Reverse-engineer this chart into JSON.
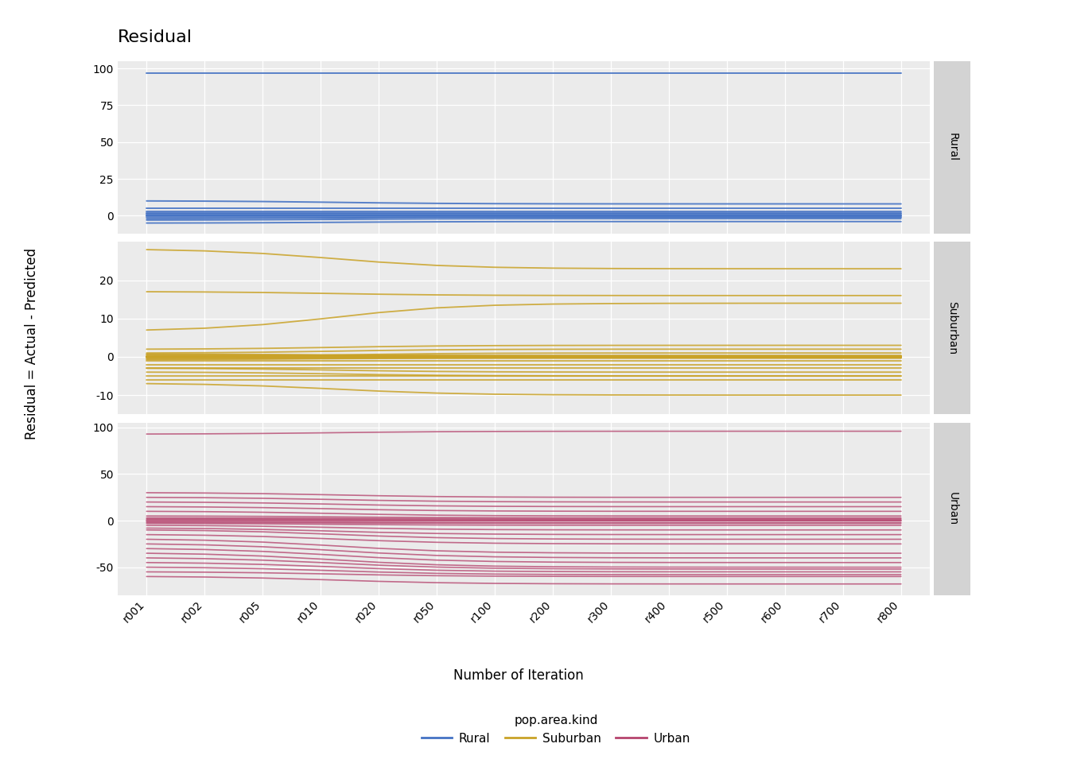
{
  "title": "Residual",
  "ylabel": "Residual = Actual - Predicted",
  "xlabel": "Number of Iteration",
  "x_labels": [
    "r001",
    "r002",
    "r005",
    "r010",
    "r020",
    "r050",
    "r100",
    "r200",
    "r300",
    "r400",
    "r500",
    "r600",
    "r700",
    "r800"
  ],
  "colors": {
    "Rural": "#4472C4",
    "Suburban": "#C9A227",
    "Urban": "#B5446E"
  },
  "background_color": "#EBEBEB",
  "strip_color": "#D3D3D3",
  "rural_lines": [
    [
      97,
      97
    ],
    [
      10,
      8
    ],
    [
      5,
      5
    ],
    [
      3,
      3
    ],
    [
      2,
      2
    ],
    [
      1,
      1
    ],
    [
      0,
      0
    ],
    [
      0,
      0
    ],
    [
      -1,
      -1
    ],
    [
      -2,
      -1
    ],
    [
      -3,
      -2
    ],
    [
      -5,
      -4
    ]
  ],
  "suburban_lines": [
    [
      28,
      23
    ],
    [
      17,
      16
    ],
    [
      7,
      14
    ],
    [
      2,
      3
    ],
    [
      1,
      2
    ],
    [
      0,
      1
    ],
    [
      0,
      0
    ],
    [
      0,
      0
    ],
    [
      0,
      0
    ],
    [
      0,
      0
    ],
    [
      0,
      0
    ],
    [
      -1,
      -1
    ],
    [
      -2,
      -2
    ],
    [
      -3,
      -3
    ],
    [
      -3,
      -4
    ],
    [
      -4,
      -5
    ],
    [
      -5,
      -5
    ],
    [
      -6,
      -6
    ],
    [
      -7,
      -10
    ]
  ],
  "urban_lines": [
    [
      93,
      96
    ],
    [
      30,
      25
    ],
    [
      25,
      20
    ],
    [
      20,
      15
    ],
    [
      15,
      10
    ],
    [
      10,
      5
    ],
    [
      5,
      3
    ],
    [
      3,
      2
    ],
    [
      2,
      1
    ],
    [
      1,
      0
    ],
    [
      0,
      0
    ],
    [
      -1,
      -2
    ],
    [
      -2,
      -3
    ],
    [
      -3,
      -5
    ],
    [
      -5,
      -10
    ],
    [
      -8,
      -15
    ],
    [
      -10,
      -20
    ],
    [
      -15,
      -25
    ],
    [
      -20,
      -35
    ],
    [
      -25,
      -40
    ],
    [
      -30,
      -45
    ],
    [
      -35,
      -50
    ],
    [
      -40,
      -52
    ],
    [
      -45,
      -55
    ],
    [
      -50,
      -58
    ],
    [
      -55,
      -60
    ],
    [
      -60,
      -68
    ]
  ],
  "rural_yticks": [
    0,
    25,
    50,
    75,
    100
  ],
  "rural_ylim": [
    -12,
    105
  ],
  "suburban_yticks": [
    -10,
    0,
    10,
    20
  ],
  "suburban_ylim": [
    -15,
    30
  ],
  "urban_yticks": [
    -50,
    0,
    50,
    100
  ],
  "urban_ylim": [
    -80,
    105
  ]
}
